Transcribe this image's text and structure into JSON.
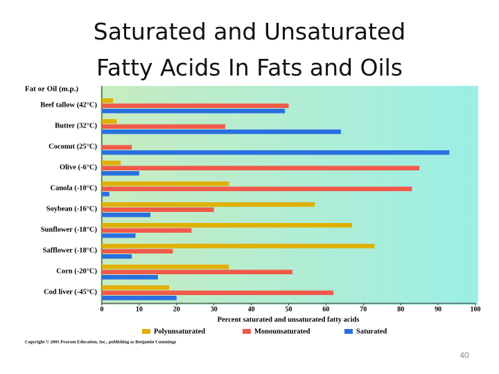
{
  "chart_data": {
    "type": "bar",
    "orientation": "horizontal",
    "title": "Saturated and Unsaturated Fatty Acids In Fats and Oils",
    "header": "Fat or Oil (m.p.)",
    "x_label": "Percent saturated and unsaturated fatty acids",
    "categories": [
      "Beef tallow (42°C)",
      "Butter (32°C)",
      "Coconut (25°C)",
      "Olive (-6°C)",
      "Canola (-10°C)",
      "Soybean (-16°C)",
      "Sunflower (-18°C)",
      "Safflower (-18°C)",
      "Corn (-20°C)",
      "Cod liver (-45°C)"
    ],
    "series": [
      {
        "name": "Polyunsaturated",
        "color": "#e0b000",
        "values": [
          3,
          4,
          null,
          5,
          34,
          57,
          67,
          73,
          34,
          18
        ]
      },
      {
        "name": "Monounsaturated",
        "color": "#f05a4a",
        "values": [
          50,
          33,
          8,
          85,
          83,
          30,
          24,
          19,
          51,
          62
        ]
      },
      {
        "name": "Saturated",
        "color": "#2a6fe0",
        "values": [
          49,
          64,
          93,
          10,
          2,
          13,
          9,
          8,
          15,
          20
        ]
      }
    ],
    "xlim": [
      0,
      100
    ],
    "xticks": [
      0,
      10,
      20,
      30,
      40,
      50,
      60,
      70,
      80,
      90,
      100
    ],
    "source": "Copyright © 2005 Pearson Education, Inc., publishing as Benjamin Cummings"
  },
  "slide": {
    "page_number": "40"
  }
}
